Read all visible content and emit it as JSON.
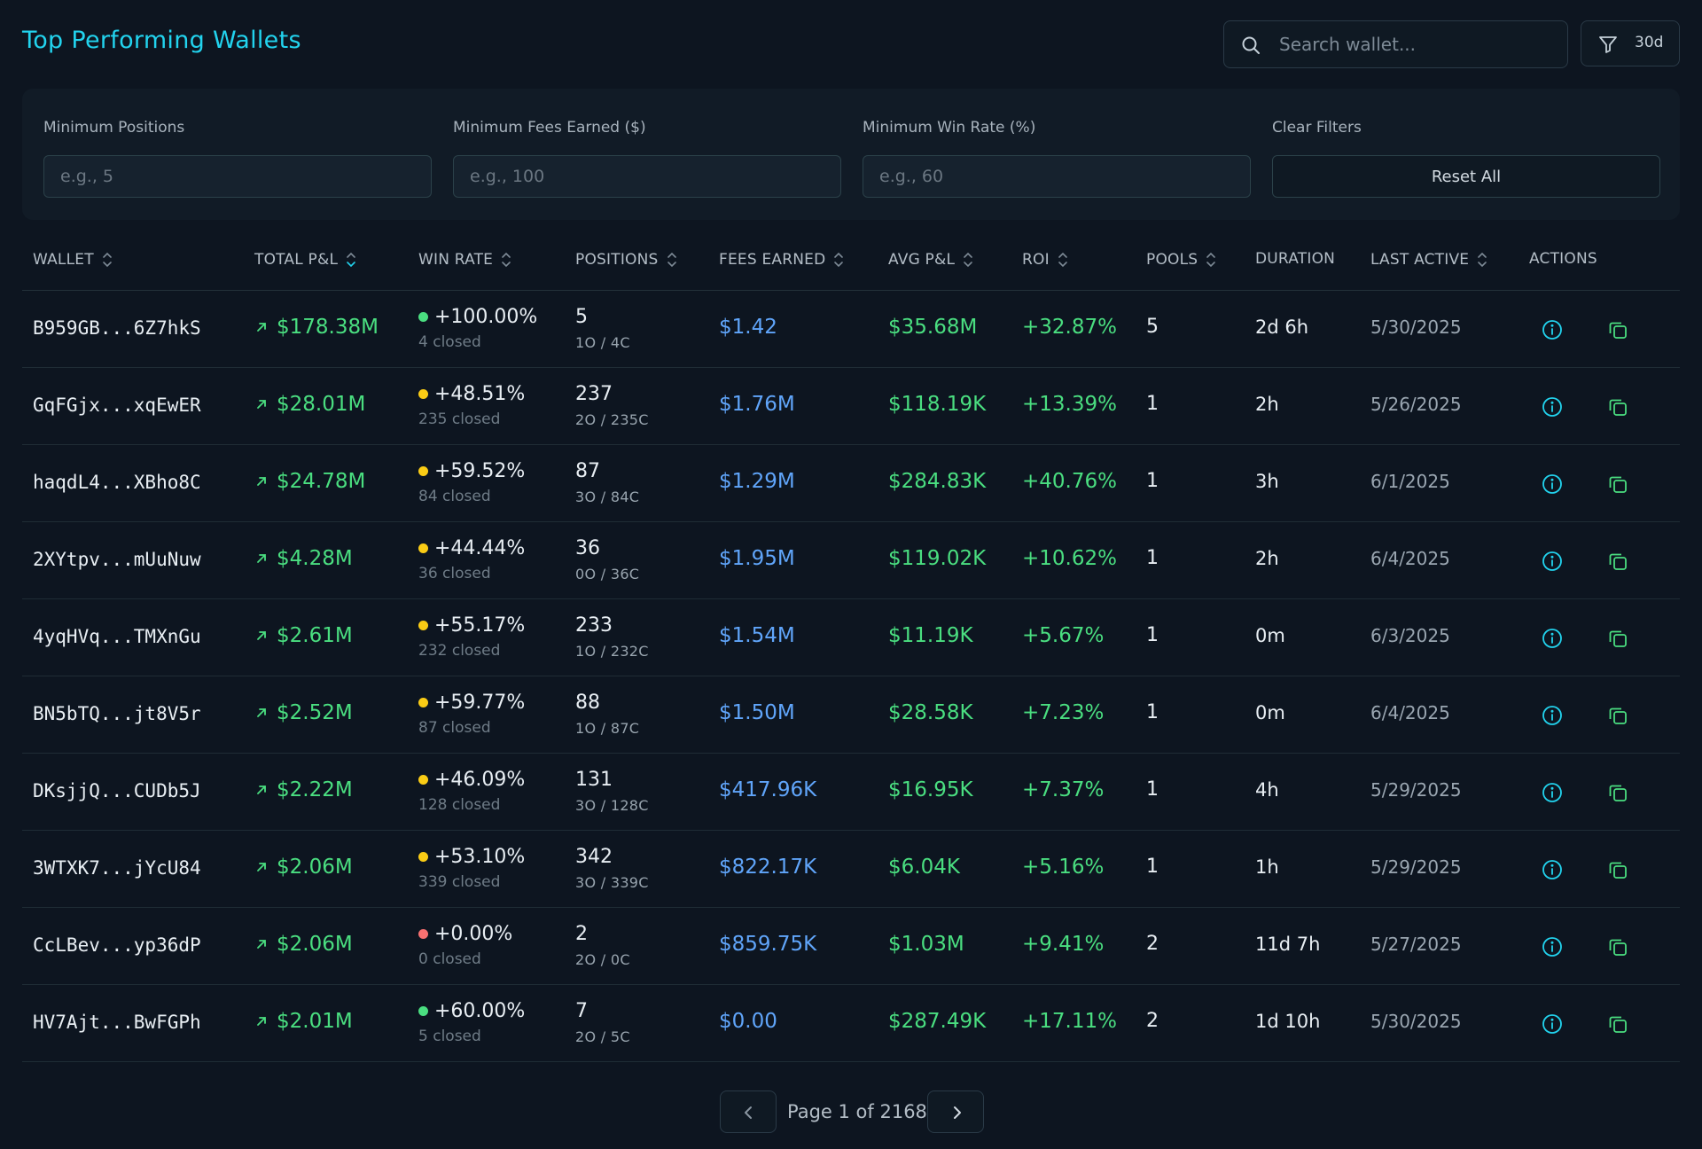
{
  "header": {
    "title": "Top Performing Wallets",
    "search_placeholder": "Search wallet...",
    "filter_period": "30d"
  },
  "filters": {
    "min_positions_label": "Minimum Positions",
    "min_positions_placeholder": "e.g., 5",
    "min_fees_label": "Minimum Fees Earned ($)",
    "min_fees_placeholder": "e.g., 100",
    "min_winrate_label": "Minimum Win Rate (%)",
    "min_winrate_placeholder": "e.g., 60",
    "clear_label": "Clear Filters",
    "reset_label": "Reset All"
  },
  "table": {
    "columns": [
      "WALLET",
      "TOTAL P&L",
      "WIN RATE",
      "POSITIONS",
      "FEES EARNED",
      "AVG P&L",
      "ROI",
      "POOLS",
      "DURATION",
      "LAST ACTIVE",
      "ACTIONS"
    ],
    "rows": [
      {
        "wallet": "B959GB...6Z7hkS",
        "pnl": "$178.38M",
        "win_rate": "+100.00%",
        "win_color": "#4ade80",
        "closed": "4 closed",
        "positions": "5",
        "pos_detail": "1O / 4C",
        "fees": "$1.42",
        "avg": "$35.68M",
        "roi": "+32.87%",
        "pools": "5",
        "duration": "2d 6h",
        "last_active": "5/30/2025"
      },
      {
        "wallet": "GqFGjx...xqEwER",
        "pnl": "$28.01M",
        "win_rate": "+48.51%",
        "win_color": "#facc15",
        "closed": "235 closed",
        "positions": "237",
        "pos_detail": "2O / 235C",
        "fees": "$1.76M",
        "avg": "$118.19K",
        "roi": "+13.39%",
        "pools": "1",
        "duration": "2h",
        "last_active": "5/26/2025"
      },
      {
        "wallet": "haqdL4...XBho8C",
        "pnl": "$24.78M",
        "win_rate": "+59.52%",
        "win_color": "#facc15",
        "closed": "84 closed",
        "positions": "87",
        "pos_detail": "3O / 84C",
        "fees": "$1.29M",
        "avg": "$284.83K",
        "roi": "+40.76%",
        "pools": "1",
        "duration": "3h",
        "last_active": "6/1/2025"
      },
      {
        "wallet": "2XYtpv...mUuNuw",
        "pnl": "$4.28M",
        "win_rate": "+44.44%",
        "win_color": "#facc15",
        "closed": "36 closed",
        "positions": "36",
        "pos_detail": "0O / 36C",
        "fees": "$1.95M",
        "avg": "$119.02K",
        "roi": "+10.62%",
        "pools": "1",
        "duration": "2h",
        "last_active": "6/4/2025"
      },
      {
        "wallet": "4yqHVq...TMXnGu",
        "pnl": "$2.61M",
        "win_rate": "+55.17%",
        "win_color": "#facc15",
        "closed": "232 closed",
        "positions": "233",
        "pos_detail": "1O / 232C",
        "fees": "$1.54M",
        "avg": "$11.19K",
        "roi": "+5.67%",
        "pools": "1",
        "duration": "0m",
        "last_active": "6/3/2025"
      },
      {
        "wallet": "BN5bTQ...jt8V5r",
        "pnl": "$2.52M",
        "win_rate": "+59.77%",
        "win_color": "#facc15",
        "closed": "87 closed",
        "positions": "88",
        "pos_detail": "1O / 87C",
        "fees": "$1.50M",
        "avg": "$28.58K",
        "roi": "+7.23%",
        "pools": "1",
        "duration": "0m",
        "last_active": "6/4/2025"
      },
      {
        "wallet": "DKsjjQ...CUDb5J",
        "pnl": "$2.22M",
        "win_rate": "+46.09%",
        "win_color": "#facc15",
        "closed": "128 closed",
        "positions": "131",
        "pos_detail": "3O / 128C",
        "fees": "$417.96K",
        "avg": "$16.95K",
        "roi": "+7.37%",
        "pools": "1",
        "duration": "4h",
        "last_active": "5/29/2025"
      },
      {
        "wallet": "3WTXK7...jYcU84",
        "pnl": "$2.06M",
        "win_rate": "+53.10%",
        "win_color": "#facc15",
        "closed": "339 closed",
        "positions": "342",
        "pos_detail": "3O / 339C",
        "fees": "$822.17K",
        "avg": "$6.04K",
        "roi": "+5.16%",
        "pools": "1",
        "duration": "1h",
        "last_active": "5/29/2025"
      },
      {
        "wallet": "CcLBev...yp36dP",
        "pnl": "$2.06M",
        "win_rate": "+0.00%",
        "win_color": "#f87171",
        "closed": "0 closed",
        "positions": "2",
        "pos_detail": "2O / 0C",
        "fees": "$859.75K",
        "avg": "$1.03M",
        "roi": "+9.41%",
        "pools": "2",
        "duration": "11d 7h",
        "last_active": "5/27/2025"
      },
      {
        "wallet": "HV7Ajt...BwFGPh",
        "pnl": "$2.01M",
        "win_rate": "+60.00%",
        "win_color": "#4ade80",
        "closed": "5 closed",
        "positions": "7",
        "pos_detail": "2O / 5C",
        "fees": "$0.00",
        "avg": "$287.49K",
        "roi": "+17.11%",
        "pools": "2",
        "duration": "1d 10h",
        "last_active": "5/30/2025"
      }
    ]
  },
  "pagination": {
    "text": "Page 1 of 2168"
  },
  "icons": {
    "search": "search-icon",
    "filter": "filter-icon",
    "info": "info-icon",
    "copy": "copy-icon",
    "trend": "trend-up-icon",
    "prev": "chevron-left-icon",
    "next": "chevron-right-icon"
  },
  "colors": {
    "accent": "#22d3ee",
    "positive": "#4ade80",
    "fees": "#60a5fa",
    "warning": "#facc15",
    "negative": "#f87171"
  }
}
